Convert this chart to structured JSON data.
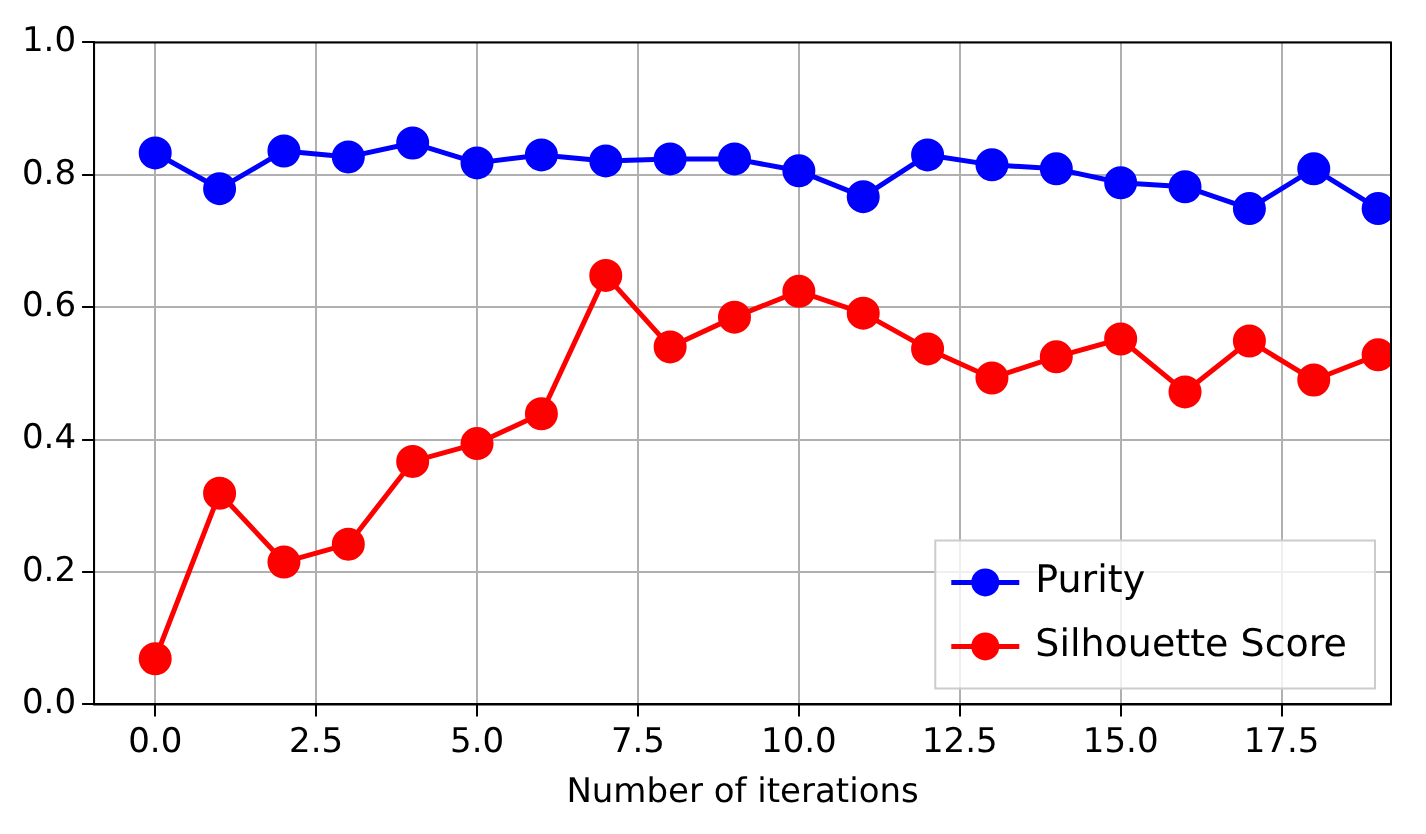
{
  "chart_data": {
    "type": "line",
    "xlabel": "Number of iterations",
    "x": [
      0,
      1,
      2,
      3,
      4,
      5,
      6,
      7,
      8,
      9,
      10,
      11,
      12,
      13,
      14,
      15,
      16,
      17,
      18,
      19
    ],
    "series": [
      {
        "name": "Purity",
        "color": "#0000ff",
        "values": [
          0.833,
          0.779,
          0.836,
          0.827,
          0.848,
          0.818,
          0.83,
          0.821,
          0.824,
          0.824,
          0.806,
          0.767,
          0.83,
          0.815,
          0.809,
          0.788,
          0.782,
          0.749,
          0.809,
          0.749
        ]
      },
      {
        "name": "Silhouette Score",
        "color": "#ff0000",
        "values": [
          0.069,
          0.319,
          0.215,
          0.242,
          0.367,
          0.394,
          0.439,
          0.648,
          0.54,
          0.585,
          0.624,
          0.591,
          0.537,
          0.493,
          0.525,
          0.552,
          0.472,
          0.549,
          0.49,
          0.528
        ]
      }
    ],
    "xlim": [
      -0.95,
      19.2
    ],
    "xticks": [
      {
        "value": 0,
        "label": "0.0"
      },
      {
        "value": 2.5,
        "label": "2.5"
      },
      {
        "value": 5,
        "label": "5.0"
      },
      {
        "value": 7.5,
        "label": "7.5"
      },
      {
        "value": 10,
        "label": "10.0"
      },
      {
        "value": 12.5,
        "label": "12.5"
      },
      {
        "value": 15,
        "label": "15.0"
      },
      {
        "value": 17.5,
        "label": "17.5"
      }
    ],
    "ylim": [
      0,
      1
    ],
    "yticks": [
      {
        "value": 0,
        "label": "0.0"
      },
      {
        "value": 0.2,
        "label": "0.2"
      },
      {
        "value": 0.4,
        "label": "0.4"
      },
      {
        "value": 0.6,
        "label": "0.6"
      },
      {
        "value": 0.8,
        "label": "0.8"
      },
      {
        "value": 1,
        "label": "1.0"
      }
    ],
    "grid": true,
    "legend": "bottom right",
    "marker": "circle",
    "line_style": "solid"
  }
}
